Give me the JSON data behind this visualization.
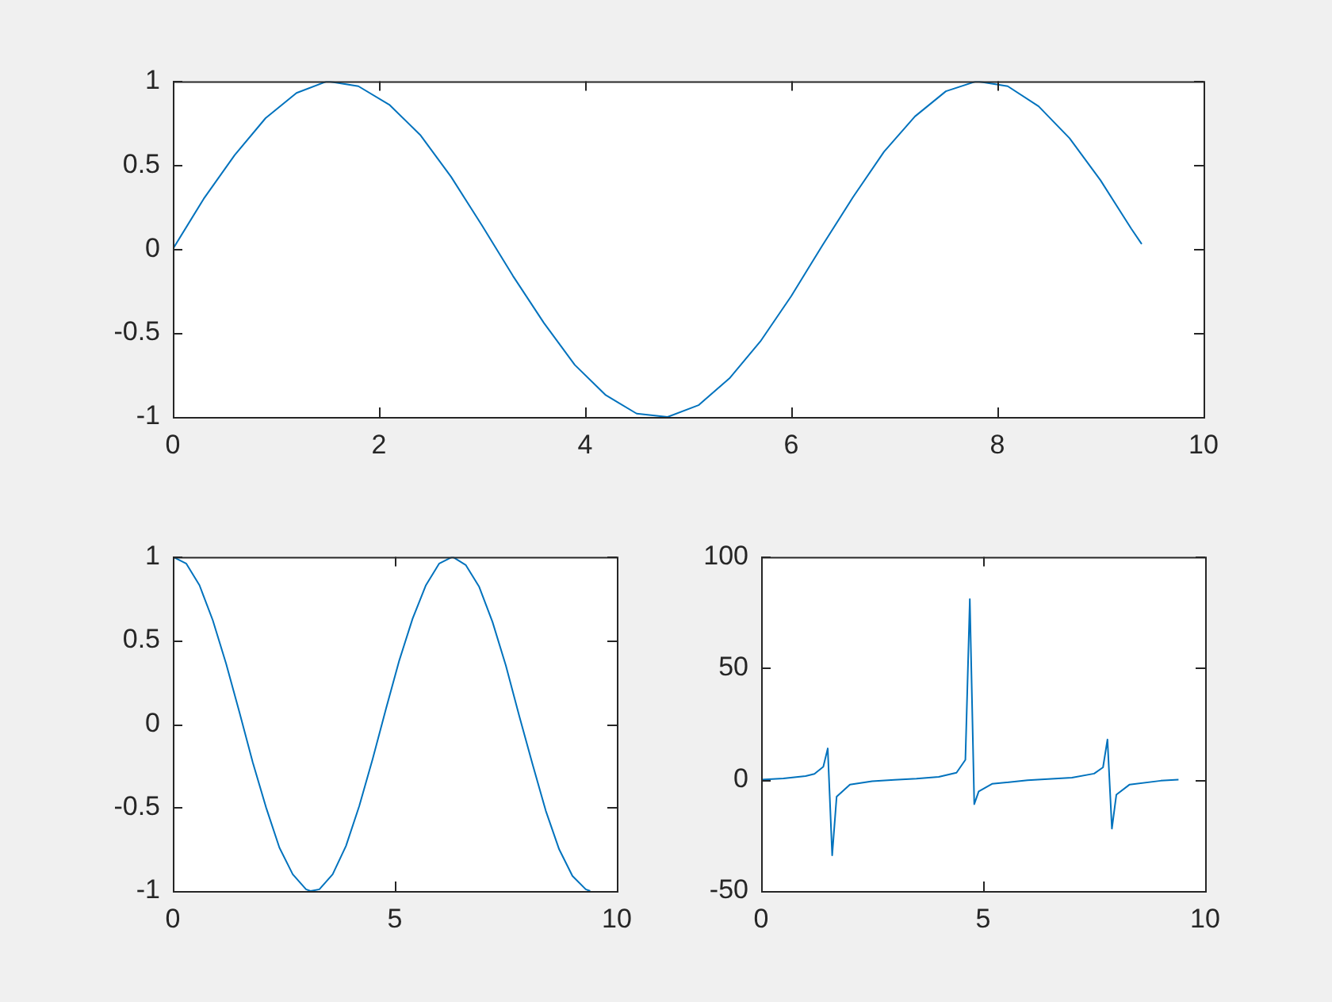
{
  "chart_data": [
    {
      "type": "line",
      "color": "#0072bd",
      "xlim": [
        0,
        10
      ],
      "ylim": [
        -1,
        1
      ],
      "xticks": [
        0,
        2,
        4,
        6,
        8,
        10
      ],
      "yticks": [
        -1,
        -0.5,
        0,
        0.5,
        1
      ],
      "grid": false,
      "x": [
        0,
        0.3,
        0.6,
        0.9,
        1.2,
        1.5,
        1.8,
        2.1,
        2.4,
        2.7,
        3.0,
        3.3,
        3.6,
        3.9,
        4.2,
        4.5,
        4.8,
        5.1,
        5.4,
        5.7,
        6.0,
        6.3,
        6.6,
        6.9,
        7.2,
        7.5,
        7.8,
        8.1,
        8.4,
        8.7,
        9.0,
        9.3,
        9.4
      ],
      "values": [
        0,
        0.3,
        0.56,
        0.78,
        0.93,
        1.0,
        0.97,
        0.86,
        0.68,
        0.43,
        0.14,
        -0.16,
        -0.44,
        -0.69,
        -0.87,
        -0.98,
        -1.0,
        -0.93,
        -0.77,
        -0.55,
        -0.28,
        0.02,
        0.31,
        0.58,
        0.79,
        0.94,
        1.0,
        0.97,
        0.85,
        0.66,
        0.41,
        0.12,
        0.03
      ]
    },
    {
      "type": "line",
      "color": "#0072bd",
      "xlim": [
        0,
        10
      ],
      "ylim": [
        -1,
        1
      ],
      "xticks": [
        0,
        5,
        10
      ],
      "yticks": [
        -1,
        -0.5,
        0,
        0.5,
        1
      ],
      "grid": false,
      "x": [
        0,
        0.3,
        0.6,
        0.9,
        1.2,
        1.5,
        1.8,
        2.1,
        2.4,
        2.7,
        3.0,
        3.1,
        3.3,
        3.6,
        3.9,
        4.2,
        4.5,
        4.8,
        5.1,
        5.4,
        5.7,
        6.0,
        6.3,
        6.6,
        6.9,
        7.2,
        7.5,
        7.8,
        8.1,
        8.4,
        8.7,
        9.0,
        9.3,
        9.4
      ],
      "values": [
        1.0,
        0.96,
        0.83,
        0.62,
        0.36,
        0.07,
        -0.23,
        -0.5,
        -0.74,
        -0.9,
        -0.99,
        -1.0,
        -0.99,
        -0.9,
        -0.73,
        -0.49,
        -0.21,
        0.09,
        0.38,
        0.63,
        0.83,
        0.96,
        1.0,
        0.95,
        0.82,
        0.61,
        0.35,
        0.05,
        -0.24,
        -0.52,
        -0.75,
        -0.91,
        -0.99,
        -1.0
      ]
    },
    {
      "type": "line",
      "color": "#0072bd",
      "xlim": [
        0,
        10
      ],
      "ylim": [
        -50,
        100
      ],
      "xticks": [
        0,
        5,
        10
      ],
      "yticks": [
        -50,
        0,
        50,
        100
      ],
      "grid": false,
      "x": [
        0,
        0.5,
        1.0,
        1.2,
        1.4,
        1.5,
        1.6,
        1.7,
        2.0,
        2.5,
        3.0,
        3.5,
        4.0,
        4.4,
        4.6,
        4.7,
        4.8,
        4.9,
        5.2,
        6.0,
        7.0,
        7.5,
        7.7,
        7.8,
        7.9,
        8.0,
        8.3,
        9.0,
        9.4
      ],
      "values": [
        0,
        0.5,
        1.6,
        2.6,
        5.8,
        14,
        -34,
        -7.7,
        -2.2,
        -0.7,
        -0.1,
        0.4,
        1.2,
        3.1,
        8.9,
        81,
        -11,
        -5.3,
        -1.9,
        -0.3,
        0.9,
        2.7,
        5.5,
        18,
        -22,
        -6.8,
        -2.2,
        -0.5,
        0
      ]
    }
  ]
}
